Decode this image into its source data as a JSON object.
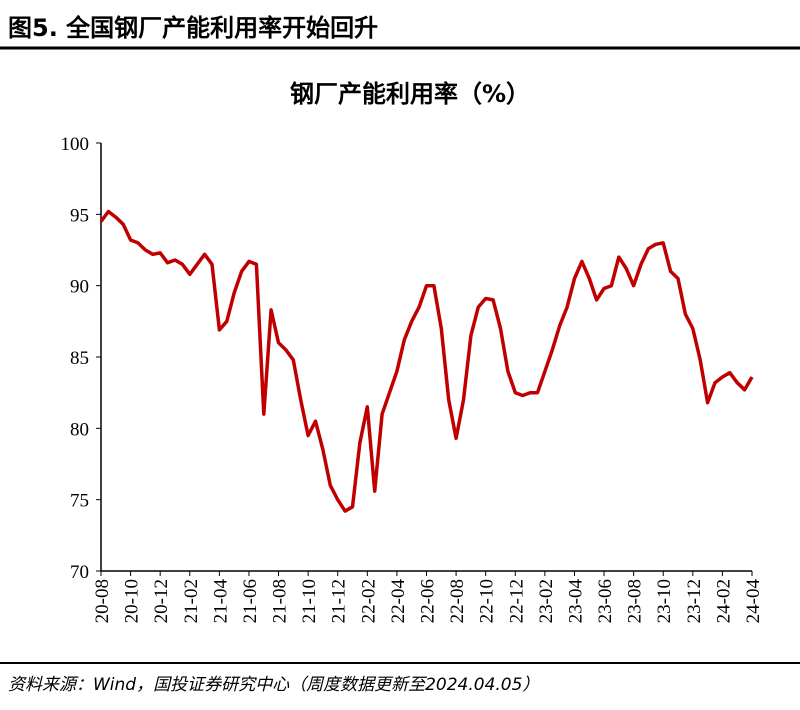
{
  "figure_title": "图5. 全国钢厂产能利用率开始回升",
  "source": "资料来源：Wind，国投证券研究中心（周度数据更新至2024.04.05）",
  "chart_data": {
    "type": "line",
    "title": "钢厂产能利用率（%）",
    "color": "#c00000",
    "categories": [
      "20-08",
      null,
      null,
      null,
      "20-10",
      null,
      null,
      null,
      "20-12",
      null,
      null,
      null,
      "21-02",
      null,
      null,
      null,
      "21-04",
      null,
      null,
      null,
      "21-06",
      null,
      null,
      null,
      "21-08",
      null,
      null,
      null,
      "21-10",
      null,
      null,
      null,
      "21-12",
      null,
      null,
      null,
      "22-02",
      null,
      null,
      null,
      "22-04",
      null,
      null,
      null,
      "22-06",
      null,
      null,
      null,
      "22-08",
      null,
      null,
      null,
      "22-10",
      null,
      null,
      null,
      "22-12",
      null,
      null,
      null,
      "23-02",
      null,
      null,
      null,
      "23-04",
      null,
      null,
      null,
      "23-06",
      null,
      null,
      null,
      "23-08",
      null,
      null,
      null,
      "23-10",
      null,
      null,
      null,
      "23-12",
      null,
      null,
      null,
      "24-02",
      null,
      null,
      null,
      "24-04"
    ],
    "values": [
      94.5,
      95.2,
      94.8,
      94.3,
      93.2,
      93.0,
      92.5,
      92.2,
      92.3,
      91.6,
      91.8,
      91.5,
      90.8,
      91.5,
      92.2,
      91.5,
      86.9,
      87.5,
      89.5,
      91.0,
      91.7,
      91.5,
      81.0,
      88.3,
      86.0,
      85.5,
      84.8,
      82.0,
      79.5,
      80.5,
      78.5,
      76.0,
      75.0,
      74.2,
      74.5,
      79.0,
      81.5,
      75.6,
      81.0,
      82.5,
      84.0,
      86.2,
      87.5,
      88.5,
      90.0,
      90.0,
      87.0,
      82.0,
      79.3,
      82.0,
      86.5,
      88.5,
      89.1,
      89.0,
      87.0,
      84.0,
      82.5,
      82.3,
      82.5,
      82.5,
      84.0,
      85.5,
      87.2,
      88.5,
      90.5,
      91.7,
      90.5,
      89.0,
      89.8,
      90.0,
      92.0,
      91.2,
      90.0,
      91.5,
      92.6,
      92.9,
      93.0,
      91.0,
      90.5,
      88.0,
      87.0,
      84.8,
      81.8,
      83.2,
      83.6,
      83.9,
      83.2,
      82.7,
      83.6
    ],
    "ylim": [
      70,
      100
    ],
    "yticks": [
      70,
      75,
      80,
      85,
      90,
      95,
      100
    ],
    "grid": false
  }
}
